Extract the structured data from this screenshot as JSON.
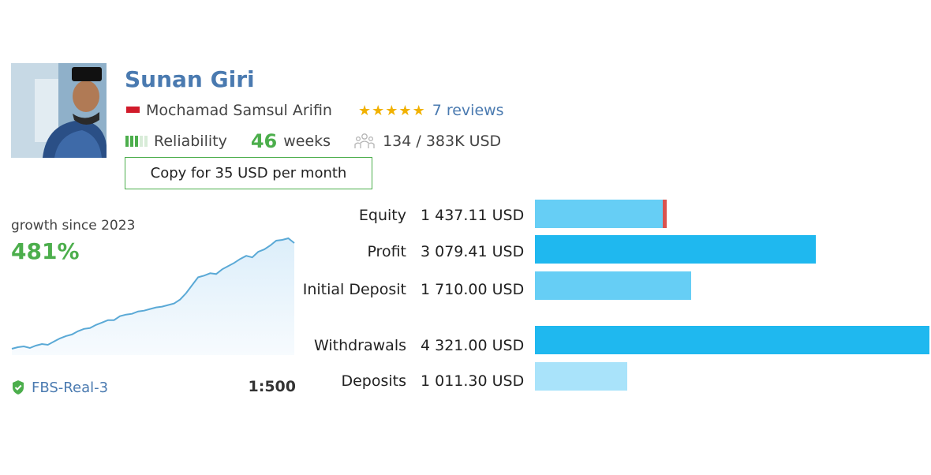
{
  "profile": {
    "signal_name": "Sunan Giri",
    "author_name": "Mochamad Samsul Arifin",
    "rating_stars": 5,
    "reviews_label": "7 reviews",
    "reliability_label": "Reliability",
    "reliability_level": 3,
    "reliability_scale": 5,
    "weeks_value": "46",
    "weeks_label": "weeks",
    "subscribers_text": "134 / 383K USD",
    "copy_button_label": "Copy for 35 USD per month"
  },
  "growth": {
    "label": "growth since 2023",
    "value": "481%"
  },
  "account": {
    "server": "FBS-Real-3",
    "leverage": "1:500"
  },
  "stats": [
    {
      "label": "Equity",
      "value": "1 437.11 USD",
      "amount": 1437.11,
      "color": "#66cef5"
    },
    {
      "label": "Profit",
      "value": "3 079.41 USD",
      "amount": 3079.41,
      "color": "#1fb8ef"
    },
    {
      "label": "Initial Deposit",
      "value": "1 710.00 USD",
      "amount": 1710.0,
      "color": "#66cef5"
    },
    {
      "label": "Withdrawals",
      "value": "4 321.00 USD",
      "amount": 4321.0,
      "color": "#1fb8ef"
    },
    {
      "label": "Deposits",
      "value": "1 011.30 USD",
      "amount": 1011.3,
      "color": "#a9e3fa"
    }
  ],
  "chart_data": {
    "type": "area",
    "title": "",
    "series": [
      {
        "values": [
          0,
          2,
          3,
          1,
          4,
          6,
          5,
          9,
          13,
          16,
          18,
          22,
          25,
          26,
          30,
          33,
          36,
          36,
          41,
          43,
          44,
          47,
          48,
          50,
          52,
          53,
          55,
          57,
          62,
          70,
          80,
          90,
          92,
          95,
          94,
          100,
          104,
          108,
          113,
          117,
          115,
          122,
          125,
          130,
          136,
          137,
          139,
          133
        ]
      }
    ]
  },
  "colors": {
    "accent_green": "#4cae4c",
    "link_blue": "#4a7ab0",
    "star_gold": "#f1b100",
    "equity_marker": "#d9534f"
  }
}
